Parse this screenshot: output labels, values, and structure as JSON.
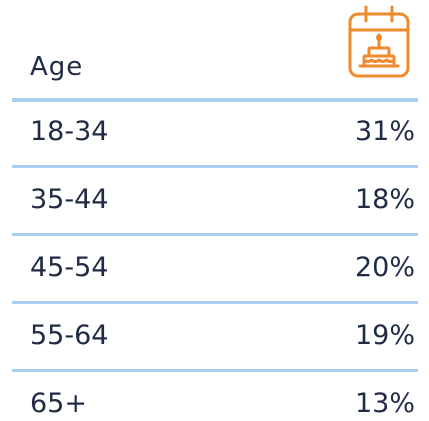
{
  "header": {
    "title": "Age"
  },
  "table": {
    "rows": [
      [
        "18-34",
        "31%"
      ],
      [
        "35-44",
        "18%"
      ],
      [
        "45-54",
        "20%"
      ],
      [
        "55-64",
        "19%"
      ],
      [
        "65+",
        "13%"
      ]
    ]
  }
}
